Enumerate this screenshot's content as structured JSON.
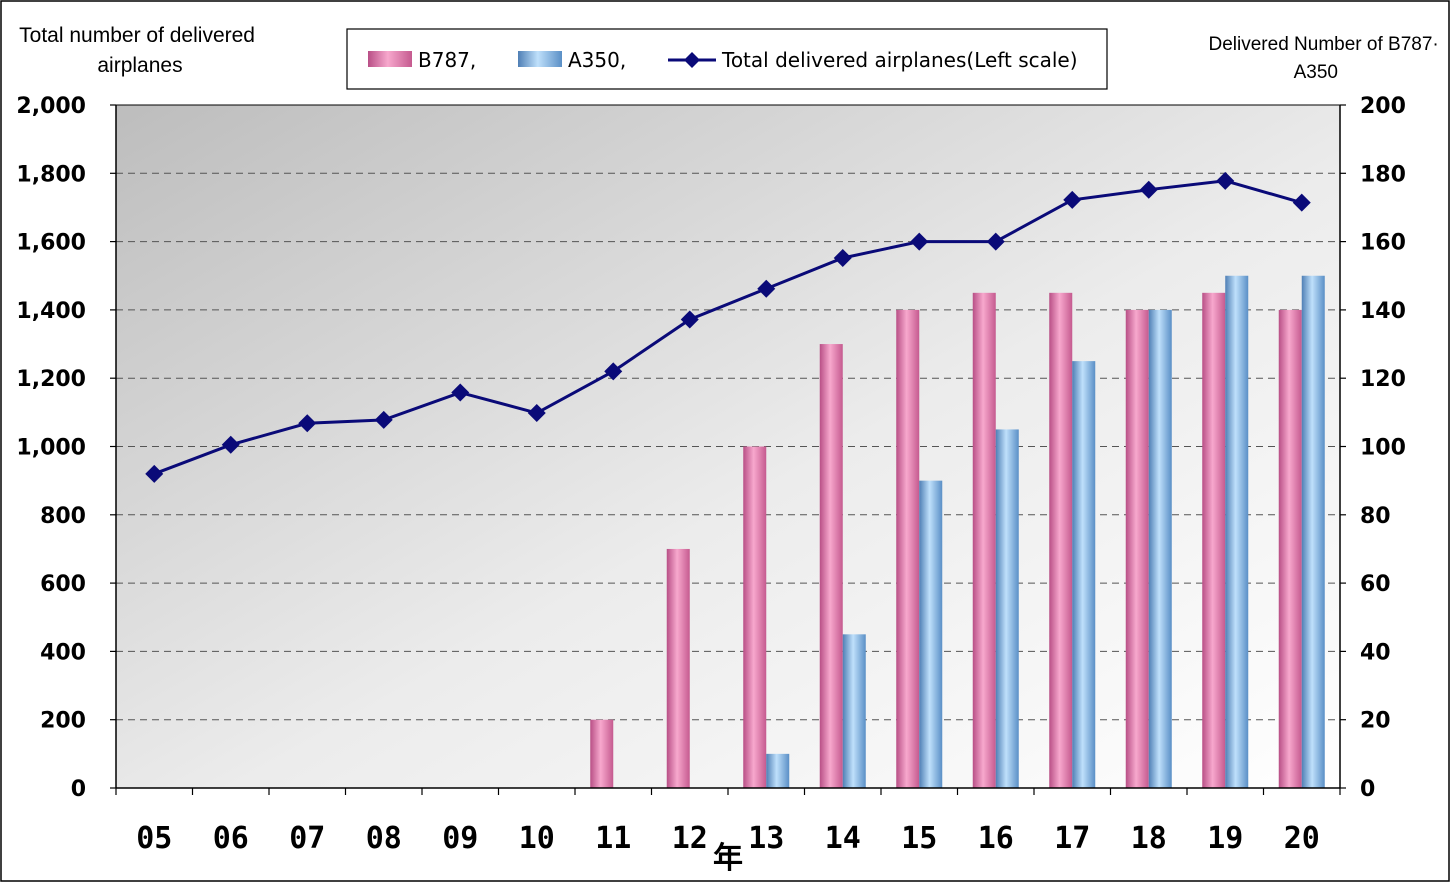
{
  "chart_data": {
    "type": "bar",
    "title": "",
    "xlabel": "年",
    "ylabel_left": "Total number of delivered airplanes",
    "ylabel_right": "Delivered Number of B787·A350",
    "categories": [
      "05",
      "06",
      "07",
      "08",
      "09",
      "10",
      "11",
      "12",
      "13",
      "14",
      "15",
      "16",
      "17",
      "18",
      "19",
      "20"
    ],
    "ylim_left": [
      0,
      2000
    ],
    "ylim_right": [
      0,
      200
    ],
    "yticks_left": [
      "0",
      "200",
      "400",
      "600",
      "800",
      "1,000",
      "1,200",
      "1,400",
      "1,600",
      "1,800",
      "2,000"
    ],
    "yticks_right": [
      "0",
      "20",
      "40",
      "60",
      "80",
      "100",
      "120",
      "140",
      "160",
      "180",
      "200"
    ],
    "grid": true,
    "legend_position": "top-center",
    "series": [
      {
        "name": "B787,",
        "kind": "bar",
        "axis": "right",
        "color": "#e986b4",
        "values": [
          0,
          0,
          0,
          0,
          0,
          0,
          20,
          70,
          100,
          130,
          140,
          145,
          145,
          140,
          145,
          140
        ]
      },
      {
        "name": "A350,",
        "kind": "bar",
        "axis": "right",
        "color": "#8ec0ec",
        "values": [
          0,
          0,
          0,
          0,
          0,
          0,
          0,
          0,
          10,
          45,
          90,
          105,
          125,
          140,
          150,
          150
        ]
      },
      {
        "name": "Total delivered airplanes(Left scale)",
        "kind": "line",
        "axis": "left",
        "color": "#0a0a78",
        "values": [
          920,
          1005,
          1068,
          1078,
          1158,
          1098,
          1220,
          1372,
          1462,
          1552,
          1600,
          1600,
          1722,
          1752,
          1778,
          1714
        ]
      }
    ]
  }
}
